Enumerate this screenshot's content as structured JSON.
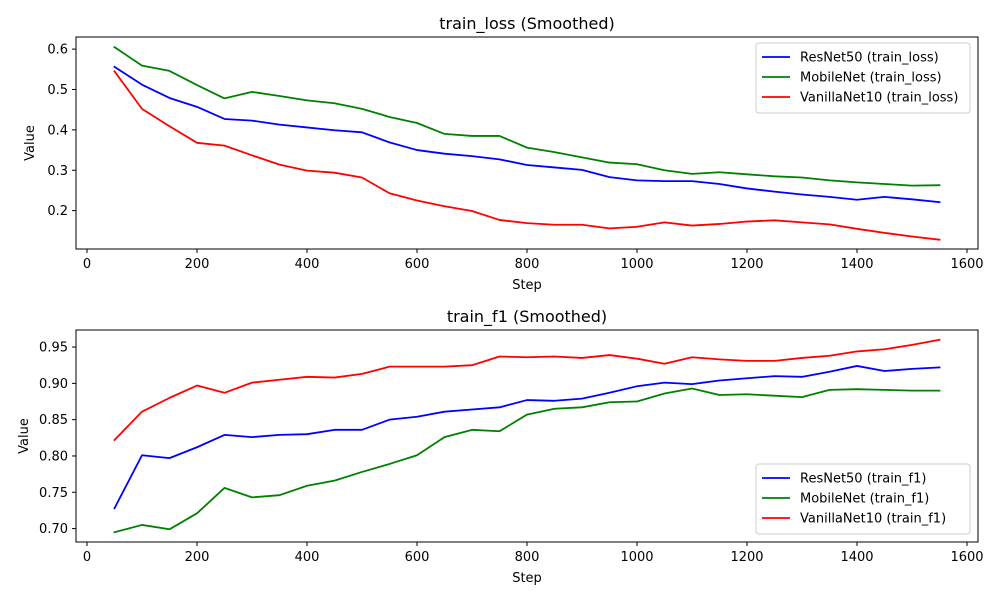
{
  "chart_data": [
    {
      "type": "line",
      "title": "train_loss (Smoothed)",
      "xlabel": "Step",
      "ylabel": "Value",
      "xlim": [
        -20,
        1620
      ],
      "ylim": [
        0.105,
        0.63
      ],
      "xticks": [
        0,
        200,
        400,
        600,
        800,
        1000,
        1200,
        1400,
        1600
      ],
      "yticks": [
        0.2,
        0.3,
        0.4,
        0.5,
        0.6
      ],
      "xtick_labels": [
        "0",
        "200",
        "400",
        "600",
        "800",
        "1000",
        "1200",
        "1400",
        "1600"
      ],
      "ytick_labels": [
        "0.2",
        "0.3",
        "0.4",
        "0.5",
        "0.6"
      ],
      "legend_position": "top-right",
      "x": [
        50,
        100,
        150,
        200,
        250,
        300,
        350,
        400,
        450,
        500,
        550,
        600,
        650,
        700,
        750,
        800,
        850,
        900,
        950,
        1000,
        1050,
        1100,
        1150,
        1200,
        1250,
        1300,
        1350,
        1400,
        1450,
        1500,
        1550
      ],
      "series": [
        {
          "name": "ResNet50 (train_loss)",
          "color": "#0000ff",
          "values": [
            0.556,
            0.512,
            0.479,
            0.457,
            0.427,
            0.423,
            0.413,
            0.406,
            0.399,
            0.394,
            0.369,
            0.35,
            0.341,
            0.335,
            0.327,
            0.313,
            0.307,
            0.301,
            0.283,
            0.275,
            0.273,
            0.273,
            0.266,
            0.255,
            0.247,
            0.24,
            0.234,
            0.227,
            0.234,
            0.228,
            0.221
          ]
        },
        {
          "name": "MobileNet (train_loss)",
          "color": "#008000",
          "values": [
            0.605,
            0.559,
            0.546,
            0.511,
            0.478,
            0.494,
            0.484,
            0.473,
            0.466,
            0.452,
            0.432,
            0.417,
            0.39,
            0.385,
            0.385,
            0.356,
            0.345,
            0.332,
            0.319,
            0.315,
            0.3,
            0.291,
            0.295,
            0.29,
            0.285,
            0.282,
            0.275,
            0.27,
            0.266,
            0.262,
            0.263
          ]
        },
        {
          "name": "VanillaNet10 (train_loss)",
          "color": "#ff0000",
          "values": [
            0.545,
            0.452,
            0.409,
            0.368,
            0.361,
            0.337,
            0.314,
            0.299,
            0.294,
            0.282,
            0.243,
            0.225,
            0.211,
            0.199,
            0.177,
            0.169,
            0.165,
            0.165,
            0.156,
            0.16,
            0.171,
            0.163,
            0.167,
            0.173,
            0.176,
            0.171,
            0.166,
            0.155,
            0.145,
            0.136,
            0.128
          ]
        }
      ]
    },
    {
      "type": "line",
      "title": "train_f1 (Smoothed)",
      "xlabel": "Step",
      "ylabel": "Value",
      "xlim": [
        -20,
        1620
      ],
      "ylim": [
        0.6815,
        0.9735
      ],
      "xticks": [
        0,
        200,
        400,
        600,
        800,
        1000,
        1200,
        1400,
        1600
      ],
      "yticks": [
        0.7,
        0.75,
        0.8,
        0.85,
        0.9,
        0.95
      ],
      "xtick_labels": [
        "0",
        "200",
        "400",
        "600",
        "800",
        "1000",
        "1200",
        "1400",
        "1600"
      ],
      "ytick_labels": [
        "0.70",
        "0.75",
        "0.80",
        "0.85",
        "0.90",
        "0.95"
      ],
      "legend_position": "bottom-right",
      "x": [
        50,
        100,
        150,
        200,
        250,
        300,
        350,
        400,
        450,
        500,
        550,
        600,
        650,
        700,
        750,
        800,
        850,
        900,
        950,
        1000,
        1050,
        1100,
        1150,
        1200,
        1250,
        1300,
        1350,
        1400,
        1450,
        1500,
        1550
      ],
      "series": [
        {
          "name": "ResNet50 (train_f1)",
          "color": "#0000ff",
          "values": [
            0.728,
            0.801,
            0.797,
            0.812,
            0.829,
            0.826,
            0.829,
            0.83,
            0.836,
            0.836,
            0.85,
            0.854,
            0.861,
            0.864,
            0.867,
            0.877,
            0.876,
            0.879,
            0.887,
            0.896,
            0.901,
            0.899,
            0.904,
            0.907,
            0.91,
            0.909,
            0.916,
            0.924,
            0.917,
            0.92,
            0.922
          ]
        },
        {
          "name": "MobileNet (train_f1)",
          "color": "#008000",
          "values": [
            0.695,
            0.705,
            0.699,
            0.721,
            0.756,
            0.743,
            0.746,
            0.759,
            0.766,
            0.778,
            0.789,
            0.801,
            0.826,
            0.836,
            0.834,
            0.857,
            0.865,
            0.867,
            0.874,
            0.875,
            0.886,
            0.893,
            0.884,
            0.885,
            0.883,
            0.881,
            0.891,
            0.892,
            0.891,
            0.89,
            0.89
          ]
        },
        {
          "name": "VanillaNet10 (train_f1)",
          "color": "#ff0000",
          "values": [
            0.822,
            0.861,
            0.88,
            0.897,
            0.887,
            0.901,
            0.905,
            0.909,
            0.908,
            0.913,
            0.923,
            0.923,
            0.923,
            0.925,
            0.937,
            0.936,
            0.937,
            0.935,
            0.939,
            0.934,
            0.927,
            0.936,
            0.933,
            0.931,
            0.931,
            0.935,
            0.938,
            0.944,
            0.947,
            0.953,
            0.96
          ]
        }
      ]
    }
  ]
}
